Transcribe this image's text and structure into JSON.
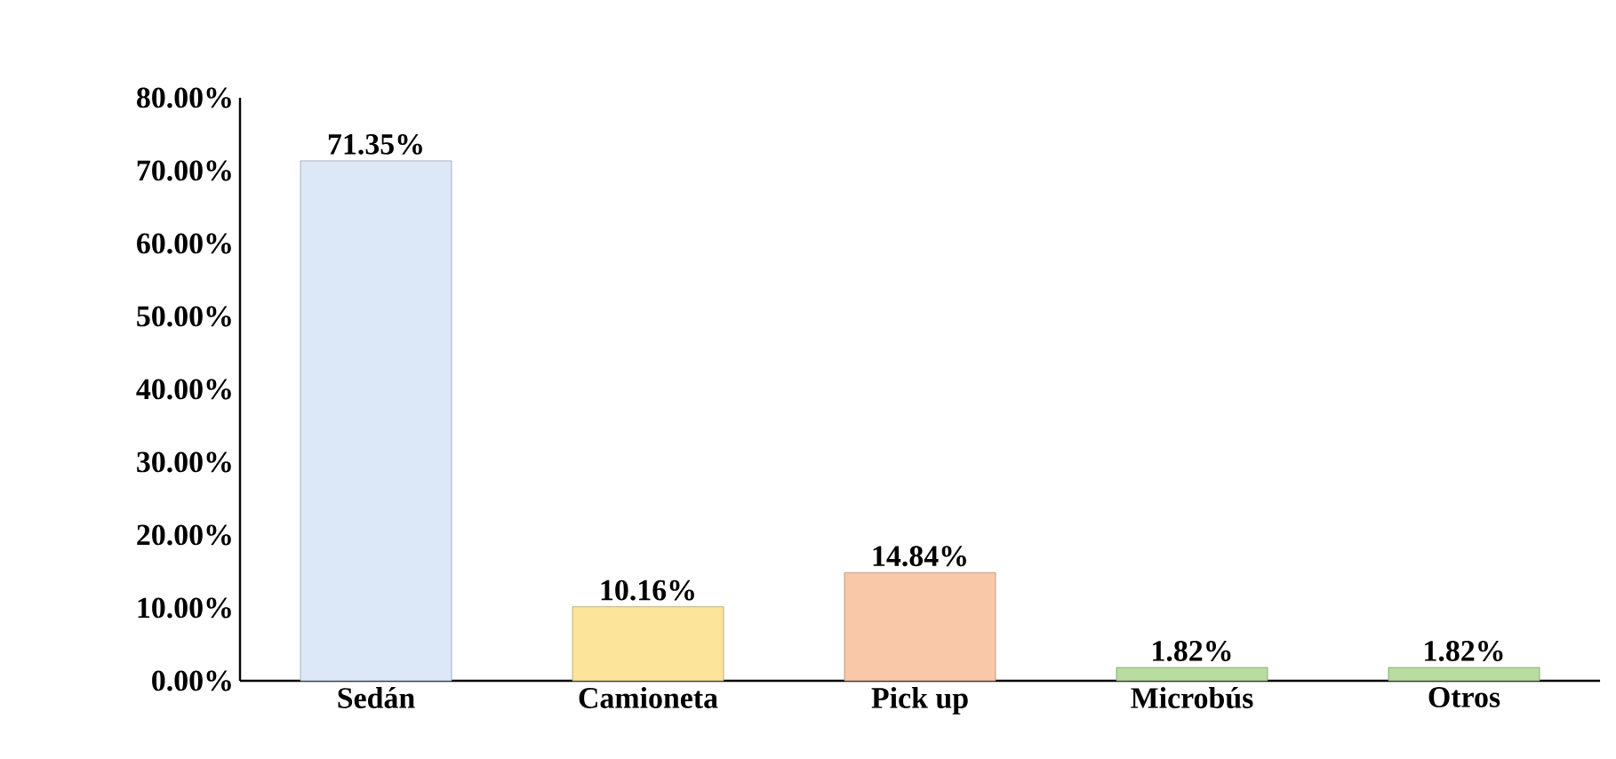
{
  "chart_data": {
    "type": "bar",
    "categories": [
      "Sedán",
      "Camioneta",
      "Pick up",
      "Microbús",
      "Otros"
    ],
    "values": [
      71.35,
      10.16,
      14.84,
      1.82,
      1.82
    ],
    "colors": [
      "#dce8f7",
      "#fce59a",
      "#f8c8a8",
      "#b9dca0",
      "#b9dca0"
    ],
    "value_labels": [
      "71.35%",
      "10.16%",
      "14.84%",
      "1.82%",
      "1.82%"
    ],
    "ylim": [
      0,
      80
    ],
    "yticks": [
      {
        "value": 0,
        "label": "0.00%"
      },
      {
        "value": 10,
        "label": "10.00%"
      },
      {
        "value": 20,
        "label": "20.00%"
      },
      {
        "value": 30,
        "label": "30.00%"
      },
      {
        "value": 40,
        "label": "40.00%"
      },
      {
        "value": 50,
        "label": "50.00%"
      },
      {
        "value": 60,
        "label": "60.00%"
      },
      {
        "value": 70,
        "label": "70.00%"
      },
      {
        "value": 80,
        "label": "80.00%"
      }
    ],
    "grid": false
  }
}
